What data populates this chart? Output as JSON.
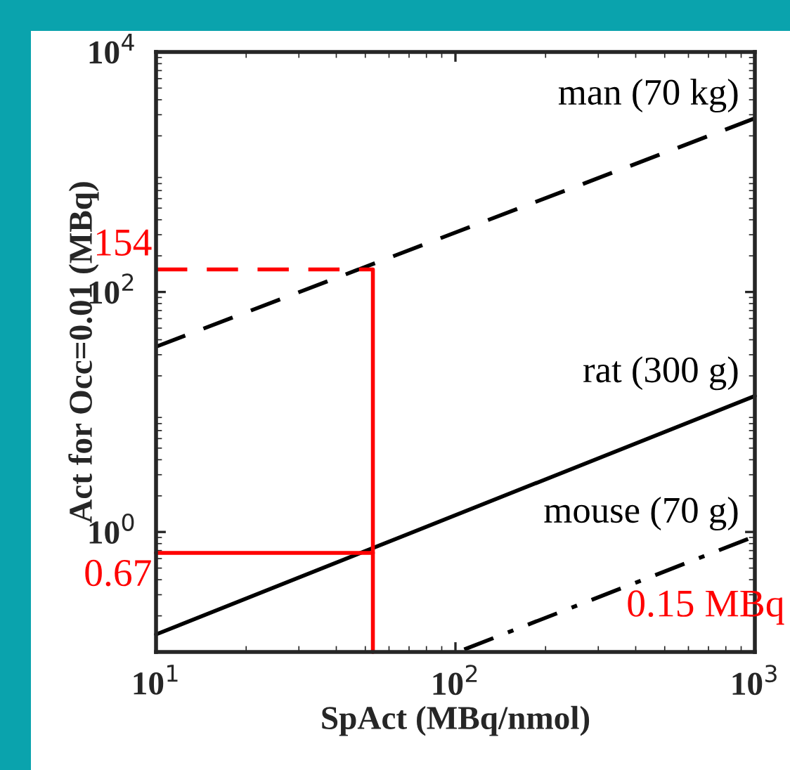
{
  "chart_data": {
    "type": "line",
    "xlabel": "SpAct (MBq/nmol)",
    "ylabel": "Act for Occ=0.01 (MBq)",
    "log": "xy",
    "grid": false,
    "xlim": [
      10,
      1000
    ],
    "ylim": [
      0.1,
      10000
    ],
    "xticks": [
      {
        "value": 10,
        "label": "10$^{1}$"
      },
      {
        "value": 100,
        "label": "10$^{2}$"
      },
      {
        "value": 1000,
        "label": "10$^{3}$"
      }
    ],
    "yticks": [
      {
        "value": 1,
        "label": "10$^{0}$"
      },
      {
        "value": 100,
        "label": "10$^{2}$"
      },
      {
        "value": 10000,
        "label": "10$^{4}$"
      }
    ],
    "series": [
      {
        "name": "man (70 kg)",
        "color": "#000000",
        "line_style": "dashed",
        "x": [
          10,
          1000
        ],
        "values": [
          35,
          2800
        ]
      },
      {
        "name": "rat (300 g)",
        "color": "#000000",
        "line_style": "solid",
        "x": [
          10,
          1000
        ],
        "values": [
          0.14,
          13.6
        ]
      },
      {
        "name": "mouse (70 g)",
        "color": "#000000",
        "line_style": "dashdot",
        "x": [
          107,
          1000
        ],
        "values": [
          0.105,
          0.92
        ]
      },
      {
        "color": "#ff0000",
        "line_style": "dashed",
        "x": [
          10,
          53
        ],
        "values": [
          154,
          154
        ]
      },
      {
        "color": "#ff0000",
        "line_style": "solid",
        "x": [
          53,
          53
        ],
        "values": [
          154,
          0.1
        ]
      },
      {
        "color": "#ff0000",
        "line_style": "solid",
        "x": [
          10,
          53
        ],
        "values": [
          0.67,
          0.67
        ]
      }
    ],
    "annotations": [
      {
        "text": "154",
        "x": 10,
        "y": 154
      },
      {
        "text": "0.67",
        "x": 10,
        "y": 0.67
      },
      "0.15 MBq"
    ]
  }
}
